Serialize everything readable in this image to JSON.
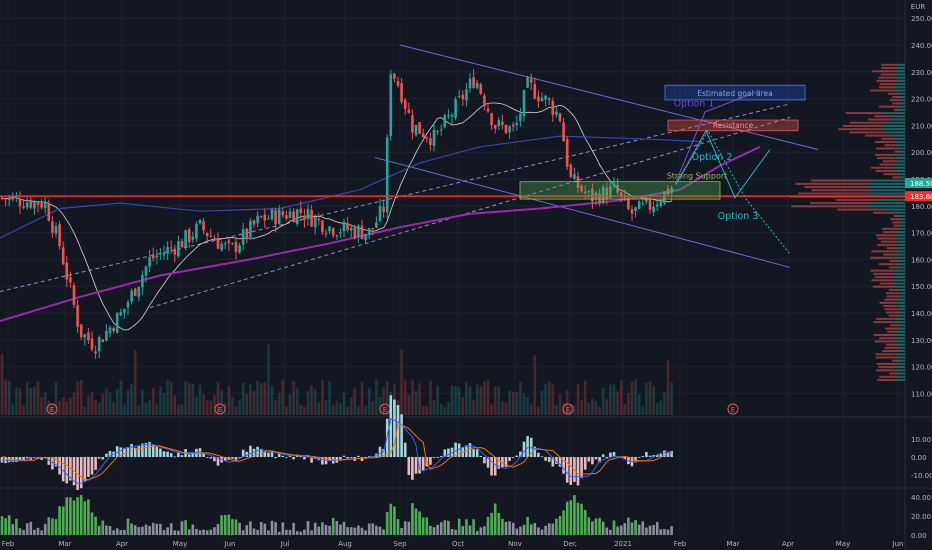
{
  "currency": "EUR",
  "price_axis": {
    "ticks": [
      "250.00",
      "240.00",
      "230.00",
      "220.00",
      "210.00",
      "200.00",
      "190.00",
      "180.00",
      "170.00",
      "160.00",
      "150.00",
      "140.00",
      "130.00",
      "120.00",
      "110.00"
    ],
    "current_price": "188.50",
    "support_price": "183.60"
  },
  "macd_axis": {
    "ticks": [
      "10.00",
      "0.00",
      "-10.00"
    ]
  },
  "rsi_axis": {
    "ticks": [
      "40.00",
      "20.00",
      "0.00"
    ]
  },
  "time_axis": [
    "Feb",
    "Mar",
    "Apr",
    "May",
    "Jun",
    "Jul",
    "Aug",
    "Sep",
    "Oct",
    "Nov",
    "Dec",
    "2021",
    "Feb",
    "Mar",
    "Apr",
    "May",
    "Jun"
  ],
  "earnings_marker": "E",
  "annotations": {
    "goal": "Estimated goal area",
    "option1": "Option 1",
    "resistance": "Resistance",
    "option2": "Option 2",
    "support": "Strong Support",
    "option3": "Option 3"
  },
  "colors": {
    "background": "#131722",
    "grid": "#1e2230",
    "up": "#26a69a",
    "down": "#ef5350",
    "support_line": "#ff2b2b",
    "channel": "#6f6bd8",
    "ma_slow": "#9c27b0",
    "option_arrows": "#29b6c6",
    "goal_box": "#2962ff"
  },
  "chart_data": {
    "type": "candlestick",
    "ylim": [
      105,
      255
    ],
    "months": [
      "Feb",
      "Mar",
      "Apr",
      "May",
      "Jun",
      "Jul",
      "Aug",
      "Sep",
      "Oct",
      "Nov",
      "Dec",
      "Jan",
      "Feb"
    ],
    "close_by_month": [
      181,
      165,
      133,
      165,
      166,
      180,
      172,
      225,
      216,
      208,
      190,
      180,
      188
    ],
    "levels": {
      "support": 183.6,
      "resistance": 210,
      "goal": 221
    }
  }
}
